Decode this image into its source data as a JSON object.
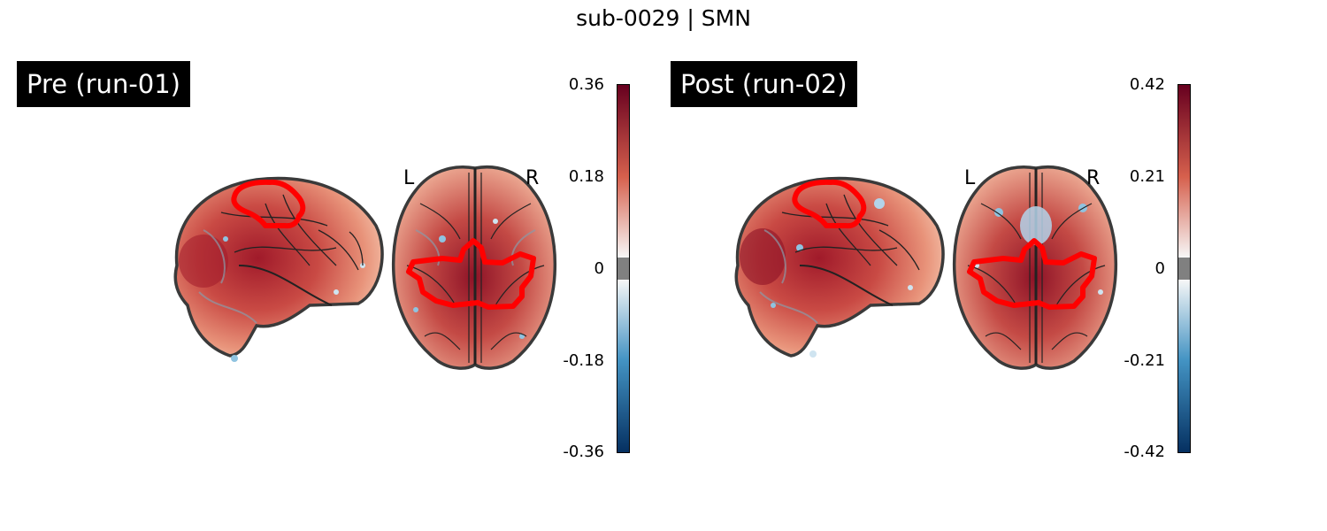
{
  "figure": {
    "title": "sub-0029 | SMN"
  },
  "panels": [
    {
      "label": "Pre (run-01)",
      "left_marker": "L",
      "right_marker": "R",
      "colorbar": {
        "ticks": [
          "0.36",
          "0.18",
          "0",
          "-0.18",
          "-0.36"
        ],
        "vmax": 0.36,
        "vmin": -0.36,
        "colormap": "RdBu_r",
        "threshold_band": "gray"
      }
    },
    {
      "label": "Post (run-02)",
      "left_marker": "L",
      "right_marker": "R",
      "colorbar": {
        "ticks": [
          "0.42",
          "0.21",
          "0",
          "-0.21",
          "-0.42"
        ],
        "vmax": 0.42,
        "vmin": -0.42,
        "colormap": "RdBu_r",
        "threshold_band": "gray"
      }
    }
  ],
  "colors": {
    "roi_outline": "#ff0000",
    "brain_outline": "#3a3a3a",
    "cmap_top": "#67001f",
    "cmap_mid_high": "#d6604d",
    "cmap_mid": "#f7f7f7",
    "cmap_mid_low": "#4393c3",
    "cmap_bottom": "#053061",
    "threshold_gray": "#808080"
  }
}
